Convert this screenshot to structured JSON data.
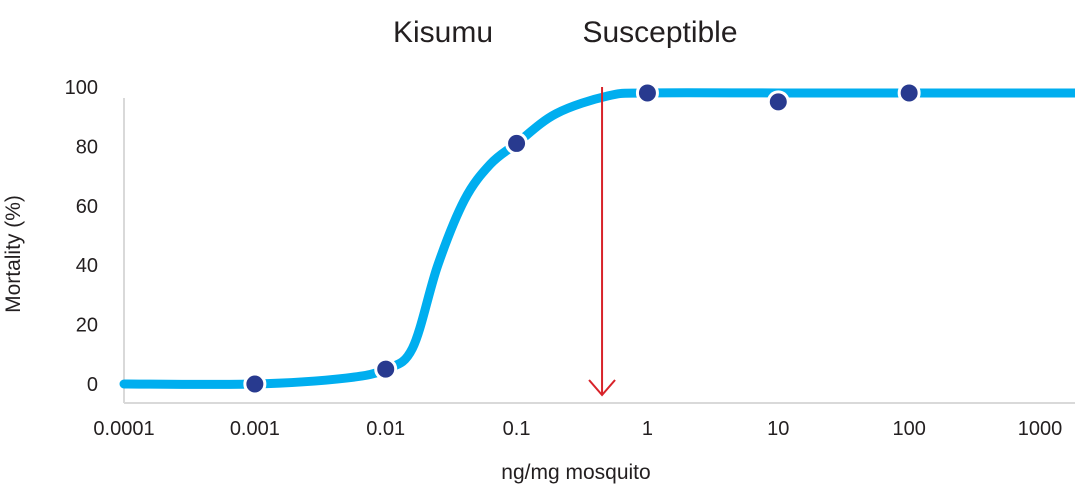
{
  "chart_data": {
    "type": "line",
    "title_left": "Kisumu",
    "title_right": "Susceptible",
    "xlabel": "ng/mg mosquito",
    "ylabel": "Mortality (%)",
    "x_scale": "log",
    "x_ticks": [
      "0.0001",
      "0.001",
      "0.01",
      "0.1",
      "1",
      "10",
      "100",
      "1000"
    ],
    "x_tick_values": [
      0.0001,
      0.001,
      0.01,
      0.1,
      1,
      10,
      100,
      1000
    ],
    "y_ticks": [
      "0",
      "20",
      "40",
      "60",
      "80",
      "100"
    ],
    "y_tick_values": [
      0,
      20,
      40,
      60,
      80,
      100
    ],
    "xlim": [
      0.0001,
      1000
    ],
    "ylim": [
      0,
      100
    ],
    "grid": false,
    "colors": {
      "curve": "#00aeef",
      "points": "#283a8f",
      "arrow": "#d8232a",
      "axis": "#d9d9d9"
    },
    "points": [
      {
        "x": 0.001,
        "y": 0
      },
      {
        "x": 0.01,
        "y": 5
      },
      {
        "x": 0.1,
        "y": 81
      },
      {
        "x": 1,
        "y": 98
      },
      {
        "x": 10,
        "y": 95
      },
      {
        "x": 100,
        "y": 98
      }
    ],
    "fit_curve": [
      {
        "x": 0.0001,
        "y": 0
      },
      {
        "x": 0.001,
        "y": 0
      },
      {
        "x": 0.005,
        "y": 2
      },
      {
        "x": 0.01,
        "y": 5
      },
      {
        "x": 0.016,
        "y": 12
      },
      {
        "x": 0.025,
        "y": 40
      },
      {
        "x": 0.04,
        "y": 62
      },
      {
        "x": 0.063,
        "y": 74
      },
      {
        "x": 0.1,
        "y": 81
      },
      {
        "x": 0.2,
        "y": 91
      },
      {
        "x": 0.5,
        "y": 97
      },
      {
        "x": 1,
        "y": 98
      },
      {
        "x": 10,
        "y": 98
      },
      {
        "x": 100,
        "y": 98
      },
      {
        "x": 1000,
        "y": 98
      }
    ],
    "marker_x": 0.45
  }
}
